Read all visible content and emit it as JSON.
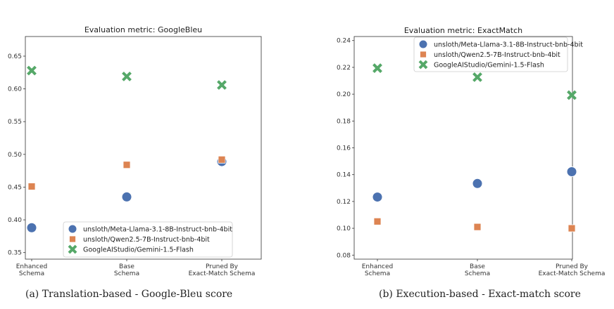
{
  "figures": [
    {
      "caption": "(a) Translation-based - Google-Bleu score"
    },
    {
      "caption": "(b) Execution-based - Exact-match score"
    }
  ],
  "chart_data": [
    {
      "type": "scatter",
      "title": "Evaluation metric: GoogleBleu",
      "xlabel": "",
      "ylabel": "",
      "categories": [
        "Enhanced\nSchema",
        "Base\nSchema",
        "Pruned By\nExact-Match Schema"
      ],
      "ylim": [
        0.34,
        0.68
      ],
      "yticks": [
        "0.35",
        "0.40",
        "0.45",
        "0.50",
        "0.55",
        "0.60",
        "0.65"
      ],
      "ytick_values": [
        0.35,
        0.4,
        0.45,
        0.5,
        0.55,
        0.6,
        0.65
      ],
      "legend_position": "lower-right",
      "series": [
        {
          "name": "unsloth/Meta-Llama-3.1-8B-Instruct-bnb-4bit",
          "marker": "circle",
          "color": "#4c72b0",
          "values": [
            0.388,
            0.435,
            0.489
          ]
        },
        {
          "name": "unsloth/Qwen2.5-7B-Instruct-bnb-4bit",
          "marker": "square",
          "color": "#dd8452",
          "values": [
            0.451,
            0.484,
            0.492
          ]
        },
        {
          "name": "GoogleAIStudio/Gemini-1.5-Flash",
          "marker": "x",
          "color": "#55a868",
          "values": [
            0.628,
            0.619,
            0.606
          ]
        }
      ]
    },
    {
      "type": "scatter",
      "title": "Evaluation metric: ExactMatch",
      "xlabel": "",
      "ylabel": "",
      "categories": [
        "Enhanced\nSchema",
        "Base\nSchema",
        "Pruned By\nExact-Match Schema"
      ],
      "ylim": [
        0.077,
        0.243
      ],
      "yticks": [
        "0.08",
        "0.10",
        "0.12",
        "0.14",
        "0.16",
        "0.18",
        "0.20",
        "0.22",
        "0.24"
      ],
      "ytick_values": [
        0.08,
        0.1,
        0.12,
        0.14,
        0.16,
        0.18,
        0.2,
        0.22,
        0.24
      ],
      "legend_position": "upper-center",
      "series": [
        {
          "name": "unsloth/Meta-Llama-3.1-8B-Instruct-bnb-4bit",
          "marker": "circle",
          "color": "#4c72b0",
          "values": [
            0.1233,
            0.1334,
            0.1422
          ]
        },
        {
          "name": "unsloth/Qwen2.5-7B-Instruct-bnb-4bit",
          "marker": "square",
          "color": "#dd8452",
          "values": [
            0.1051,
            0.101,
            0.1
          ]
        },
        {
          "name": "GoogleAIStudio/Gemini-1.5-Flash",
          "marker": "x",
          "color": "#55a868",
          "values": [
            0.2194,
            0.2127,
            0.1993
          ]
        }
      ]
    }
  ]
}
